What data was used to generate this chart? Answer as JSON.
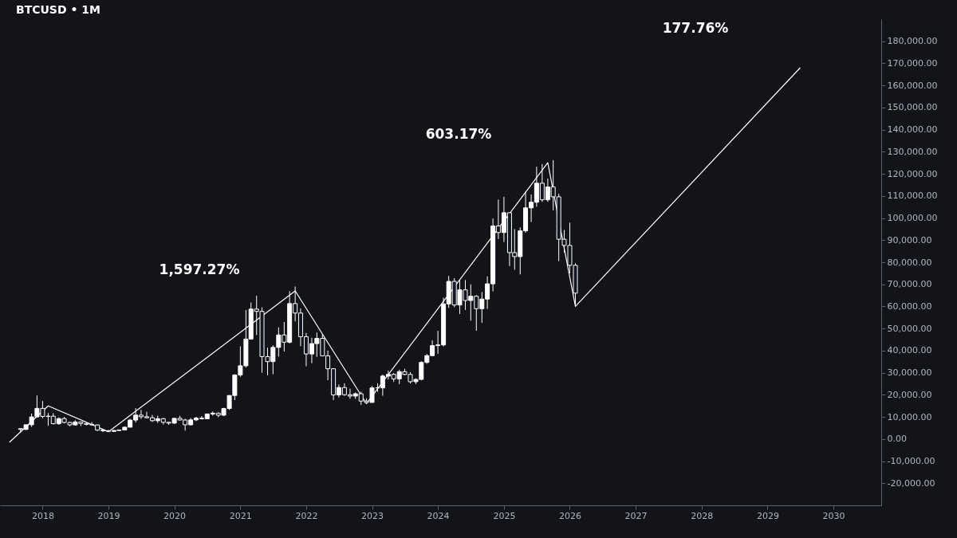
{
  "chart_data": {
    "type": "candlestick",
    "title": "BTCUSD • 1M",
    "xlim": [
      "2017-06",
      "2030-09"
    ],
    "xticks": [
      "2018",
      "2019",
      "2020",
      "2021",
      "2022",
      "2023",
      "2024",
      "2025",
      "2026",
      "2027",
      "2028",
      "2029",
      "2030"
    ],
    "ylim": [
      -30000,
      190000
    ],
    "yticks": [
      {
        "value": -20000,
        "label": "-20,000.00"
      },
      {
        "value": -10000,
        "label": "-10,000.00"
      },
      {
        "value": 0,
        "label": "0.00"
      },
      {
        "value": 10000,
        "label": "10,000.00"
      },
      {
        "value": 20000,
        "label": "20,000.00"
      },
      {
        "value": 30000,
        "label": "30,000.00"
      },
      {
        "value": 40000,
        "label": "40,000.00"
      },
      {
        "value": 50000,
        "label": "50,000.00"
      },
      {
        "value": 60000,
        "label": "60,000.00"
      },
      {
        "value": 70000,
        "label": "70,000.00"
      },
      {
        "value": 80000,
        "label": "80,000.00"
      },
      {
        "value": 90000,
        "label": "90,000.00"
      },
      {
        "value": 100000,
        "label": "100,000.00"
      },
      {
        "value": 110000,
        "label": "110,000.00"
      },
      {
        "value": 120000,
        "label": "120,000.00"
      },
      {
        "value": 130000,
        "label": "130,000.00"
      },
      {
        "value": 140000,
        "label": "140,000.00"
      },
      {
        "value": 150000,
        "label": "150,000.00"
      },
      {
        "value": 160000,
        "label": "160,000.00"
      },
      {
        "value": 170000,
        "label": "170,000.00"
      },
      {
        "value": 180000,
        "label": "180,000.00"
      }
    ],
    "annotations": [
      "1,597.27%",
      "603.17%",
      "177.76%"
    ],
    "series": [
      {
        "type": "line",
        "color": "#ffffff",
        "x": [
          "2017-07",
          "2018-02",
          "2019-01",
          "2021-11",
          "2022-12",
          "2025-09",
          "2026-02",
          "2029-07"
        ],
        "values": [
          -1500,
          15000,
          3300,
          67000,
          16000,
          125000,
          60000,
          168000
        ]
      },
      {
        "type": "candlestick",
        "color": "#ffffff",
        "x": [
          "2017-09",
          "2017-10",
          "2017-11",
          "2017-12",
          "2018-01",
          "2018-02",
          "2018-03",
          "2018-04",
          "2018-05",
          "2018-06",
          "2018-07",
          "2018-08",
          "2018-09",
          "2018-10",
          "2018-11",
          "2018-12",
          "2019-01",
          "2019-02",
          "2019-03",
          "2019-04",
          "2019-05",
          "2019-06",
          "2019-07",
          "2019-08",
          "2019-09",
          "2019-10",
          "2019-11",
          "2019-12",
          "2020-01",
          "2020-02",
          "2020-03",
          "2020-04",
          "2020-05",
          "2020-06",
          "2020-07",
          "2020-08",
          "2020-09",
          "2020-10",
          "2020-11",
          "2020-12",
          "2021-01",
          "2021-02",
          "2021-03",
          "2021-04",
          "2021-05",
          "2021-06",
          "2021-07",
          "2021-08",
          "2021-09",
          "2021-10",
          "2021-11",
          "2021-12",
          "2022-01",
          "2022-02",
          "2022-03",
          "2022-04",
          "2022-05",
          "2022-06",
          "2022-07",
          "2022-08",
          "2022-09",
          "2022-10",
          "2022-11",
          "2022-12",
          "2023-01",
          "2023-02",
          "2023-03",
          "2023-04",
          "2023-05",
          "2023-06",
          "2023-07",
          "2023-08",
          "2023-09",
          "2023-10",
          "2023-11",
          "2023-12",
          "2024-01",
          "2024-02",
          "2024-03",
          "2024-04",
          "2024-05",
          "2024-06",
          "2024-07",
          "2024-08",
          "2024-09",
          "2024-10",
          "2024-11",
          "2024-12",
          "2025-01",
          "2025-02",
          "2025-03",
          "2025-04",
          "2025-05",
          "2025-06",
          "2025-07",
          "2025-08",
          "2025-09",
          "2025-10",
          "2025-11",
          "2025-12",
          "2026-01",
          "2026-02"
        ],
        "ohlc": [
          [
            4700,
            4970,
            2980,
            4340
          ],
          [
            4340,
            6470,
            4110,
            6450
          ],
          [
            6450,
            11500,
            5500,
            10000
          ],
          [
            10000,
            19700,
            10000,
            13860
          ],
          [
            13860,
            17200,
            9400,
            10220
          ],
          [
            10220,
            11800,
            6000,
            10330
          ],
          [
            10330,
            11700,
            6600,
            6930
          ],
          [
            6930,
            9770,
            6430,
            9240
          ],
          [
            9240,
            9990,
            7060,
            7490
          ],
          [
            7490,
            7760,
            5780,
            6400
          ],
          [
            6400,
            8500,
            6100,
            7730
          ],
          [
            7730,
            7760,
            5880,
            7030
          ],
          [
            7030,
            7410,
            6130,
            6630
          ],
          [
            6630,
            7680,
            6200,
            6370
          ],
          [
            6370,
            6560,
            3650,
            4020
          ],
          [
            4020,
            4400,
            3130,
            3740
          ],
          [
            3740,
            4140,
            3400,
            3460
          ],
          [
            3460,
            4210,
            3390,
            3850
          ],
          [
            3850,
            4120,
            3730,
            4100
          ],
          [
            4100,
            5640,
            4100,
            5350
          ],
          [
            5350,
            9090,
            5340,
            8570
          ],
          [
            8570,
            13970,
            7480,
            10820
          ],
          [
            10820,
            13200,
            9080,
            10080
          ],
          [
            10080,
            12330,
            9400,
            9630
          ],
          [
            9630,
            10910,
            7740,
            8290
          ],
          [
            8290,
            10540,
            7300,
            9200
          ],
          [
            9200,
            9530,
            6530,
            7570
          ],
          [
            7570,
            7750,
            6430,
            7190
          ],
          [
            7190,
            9580,
            6870,
            9350
          ],
          [
            9350,
            10500,
            8440,
            8600
          ],
          [
            8600,
            9190,
            3800,
            6440
          ],
          [
            6440,
            9470,
            6150,
            8660
          ],
          [
            8660,
            10070,
            8120,
            9460
          ],
          [
            9460,
            10380,
            8830,
            9140
          ],
          [
            9140,
            11440,
            8990,
            11350
          ],
          [
            11350,
            12470,
            10540,
            11680
          ],
          [
            11680,
            12070,
            9880,
            10780
          ],
          [
            10780,
            14100,
            10420,
            13800
          ],
          [
            13800,
            19750,
            13200,
            19700
          ],
          [
            19700,
            29300,
            17600,
            28990
          ],
          [
            28990,
            41950,
            28130,
            33140
          ],
          [
            33140,
            58350,
            32300,
            45240
          ],
          [
            45240,
            61790,
            44950,
            58800
          ],
          [
            58800,
            64850,
            47040,
            57750
          ],
          [
            57750,
            59590,
            30000,
            37300
          ],
          [
            37300,
            41330,
            28800,
            35040
          ],
          [
            35040,
            42400,
            29300,
            41460
          ],
          [
            41460,
            50500,
            37330,
            47100
          ],
          [
            47100,
            52920,
            39600,
            43820
          ],
          [
            43820,
            66930,
            43280,
            61300
          ],
          [
            61300,
            69000,
            53250,
            57000
          ],
          [
            57000,
            59120,
            42000,
            46300
          ],
          [
            46300,
            47990,
            32900,
            38480
          ],
          [
            38480,
            45800,
            34320,
            43190
          ],
          [
            43190,
            48190,
            37170,
            45540
          ],
          [
            45540,
            47440,
            37600,
            37640
          ],
          [
            37640,
            40000,
            26600,
            31800
          ],
          [
            31800,
            31990,
            17600,
            19940
          ],
          [
            19940,
            24670,
            18780,
            23300
          ],
          [
            23300,
            25200,
            19520,
            20050
          ],
          [
            20050,
            22800,
            18200,
            19430
          ],
          [
            19430,
            21090,
            18190,
            20490
          ],
          [
            20490,
            21480,
            15480,
            17170
          ],
          [
            17170,
            18390,
            16260,
            16540
          ],
          [
            16540,
            23960,
            16500,
            23140
          ],
          [
            23140,
            25250,
            21350,
            23150
          ],
          [
            23150,
            29190,
            19570,
            28480
          ],
          [
            28480,
            31000,
            26940,
            29250
          ],
          [
            29250,
            29820,
            25810,
            27220
          ],
          [
            27220,
            31390,
            24800,
            30480
          ],
          [
            30480,
            31800,
            28860,
            29230
          ],
          [
            29230,
            30230,
            25170,
            25940
          ],
          [
            25940,
            27480,
            24900,
            26970
          ],
          [
            26970,
            35200,
            26550,
            34660
          ],
          [
            34660,
            38430,
            34100,
            37720
          ],
          [
            37720,
            44700,
            37620,
            42280
          ],
          [
            42280,
            48970,
            38560,
            42580
          ],
          [
            42580,
            64000,
            41880,
            61130
          ],
          [
            61130,
            73780,
            59320,
            71330
          ],
          [
            71330,
            72800,
            59600,
            60640
          ],
          [
            60640,
            71980,
            56550,
            67490
          ],
          [
            67490,
            71950,
            58400,
            62680
          ],
          [
            62680,
            70000,
            53550,
            64620
          ],
          [
            64620,
            65100,
            49000,
            58970
          ],
          [
            58970,
            66500,
            52550,
            63330
          ],
          [
            63330,
            73620,
            58870,
            70220
          ],
          [
            70220,
            99800,
            66800,
            96400
          ],
          [
            96400,
            108350,
            90500,
            93430
          ],
          [
            93430,
            109600,
            89160,
            102400
          ],
          [
            102400,
            102500,
            78250,
            84350
          ],
          [
            84350,
            95000,
            76600,
            82550
          ],
          [
            82550,
            95760,
            74500,
            94200
          ],
          [
            94200,
            111980,
            93350,
            104600
          ],
          [
            104600,
            110600,
            98200,
            107140
          ],
          [
            107140,
            123200,
            105100,
            115760
          ],
          [
            115760,
            124450,
            107300,
            108250
          ],
          [
            108250,
            117900,
            107270,
            114050
          ],
          [
            114050,
            126200,
            103500,
            109600
          ],
          [
            109600,
            111000,
            80500,
            90400
          ],
          [
            90400,
            94600,
            84400,
            87600
          ],
          [
            87600,
            97900,
            75000,
            78600
          ],
          [
            78600,
            79500,
            60000,
            66000
          ]
        ],
        "colors": [
          "#131722",
          "#ffffff",
          "#ffffff",
          "#ffffff",
          "#131722",
          "#ffffff",
          "#131722",
          "#ffffff",
          "#131722",
          "#131722",
          "#ffffff",
          "#131722",
          "#131722",
          "#131722",
          "#131722",
          "#131722",
          "#131722",
          "#ffffff",
          "#ffffff",
          "#ffffff",
          "#ffffff",
          "#ffffff",
          "#131722",
          "#131722",
          "#131722",
          "#ffffff",
          "#131722",
          "#131722",
          "#ffffff",
          "#131722",
          "#131722",
          "#ffffff",
          "#ffffff",
          "#131722",
          "#ffffff",
          "#ffffff",
          "#131722",
          "#ffffff",
          "#ffffff",
          "#ffffff",
          "#ffffff",
          "#ffffff",
          "#ffffff",
          "#131722",
          "#131722",
          "#131722",
          "#ffffff",
          "#ffffff",
          "#131722",
          "#ffffff",
          "#131722",
          "#131722",
          "#131722",
          "#ffffff",
          "#ffffff",
          "#131722",
          "#131722",
          "#131722",
          "#ffffff",
          "#131722",
          "#131722",
          "#ffffff",
          "#131722",
          "#131722",
          "#ffffff",
          "#ffffff",
          "#ffffff",
          "#ffffff",
          "#131722",
          "#ffffff",
          "#131722",
          "#131722",
          "#ffffff",
          "#ffffff",
          "#ffffff",
          "#ffffff",
          "#ffffff",
          "#ffffff",
          "#ffffff",
          "#131722",
          "#ffffff",
          "#131722",
          "#ffffff",
          "#131722",
          "#ffffff",
          "#ffffff",
          "#ffffff",
          "#131722",
          "#ffffff",
          "#131722",
          "#131722",
          "#ffffff",
          "#ffffff",
          "#ffffff",
          "#ffffff",
          "#131722",
          "#ffffff",
          "#131722",
          "#131722",
          "#131722",
          "#131722",
          "#131722"
        ]
      }
    ]
  }
}
